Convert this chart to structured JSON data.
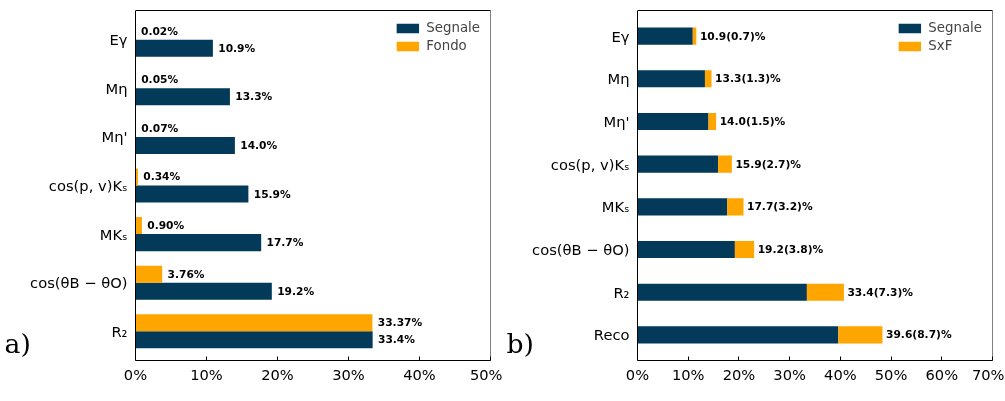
{
  "chart_data": [
    {
      "type": "bar",
      "orientation": "horizontal",
      "categories": [
        "Eγ",
        "Mη",
        "Mη'",
        "cos(p, v)Kₛ",
        "MKₛ",
        "cos(θB − θO)",
        "R₂"
      ],
      "series": [
        {
          "name": "Segnale",
          "color": "#033a59",
          "values": [
            10.9,
            13.3,
            14.0,
            15.9,
            17.7,
            19.2,
            33.4
          ],
          "value_labels": [
            "10.9%",
            "13.3%",
            "14.0%",
            "15.9%",
            "17.7%",
            "19.2%",
            "33.4%"
          ]
        },
        {
          "name": "Fondo",
          "color": "#ffa500",
          "values": [
            0.02,
            0.05,
            0.07,
            0.34,
            0.9,
            3.76,
            33.37
          ],
          "value_labels": [
            "0.02%",
            "0.05%",
            "0.07%",
            "0.34%",
            "0.90%",
            "3.76%",
            "33.37%"
          ]
        }
      ],
      "xlim": [
        0,
        50
      ],
      "xticks": [
        {
          "value": 0,
          "label": "0%"
        },
        {
          "value": 10,
          "label": "10%"
        },
        {
          "value": 20,
          "label": "20%"
        },
        {
          "value": 30,
          "label": "30%"
        },
        {
          "value": 40,
          "label": "40%"
        },
        {
          "value": 50,
          "label": "50%"
        }
      ],
      "legend": "top right",
      "grid": false,
      "annotations": [
        "a)"
      ]
    },
    {
      "type": "bar",
      "orientation": "horizontal",
      "stacked": true,
      "categories": [
        "Eγ",
        "Mη",
        "Mη'",
        "cos(p, v)Kₛ",
        "MKₛ",
        "cos(θB − θO)",
        "R₂",
        "Reco"
      ],
      "series": [
        {
          "name": "Segnale",
          "color": "#033a59",
          "values": [
            10.9,
            13.3,
            14.0,
            15.9,
            17.7,
            19.2,
            33.4,
            39.6
          ]
        },
        {
          "name": "SxF",
          "color": "#ffa500",
          "values": [
            0.7,
            1.3,
            1.5,
            2.7,
            3.2,
            3.8,
            7.3,
            8.7
          ]
        }
      ],
      "totals": [
        "10.9(0.7)%",
        "13.3(1.3)%",
        "14.0(1.5)%",
        "15.9(2.7)%",
        "17.7(3.2)%",
        "19.2(3.8)%",
        "33.4(7.3)%",
        "39.6(8.7)%"
      ],
      "xlim": [
        0,
        70
      ],
      "xticks": [
        {
          "value": 0,
          "label": "0%"
        },
        {
          "value": 10,
          "label": "10%"
        },
        {
          "value": 20,
          "label": "20%"
        },
        {
          "value": 30,
          "label": "30%"
        },
        {
          "value": 40,
          "label": "40%"
        },
        {
          "value": 50,
          "label": "50%"
        },
        {
          "value": 60,
          "label": "60%"
        },
        {
          "value": 70,
          "label": "70%"
        }
      ],
      "legend": "top right",
      "grid": false,
      "annotations": [
        "b)"
      ]
    }
  ]
}
